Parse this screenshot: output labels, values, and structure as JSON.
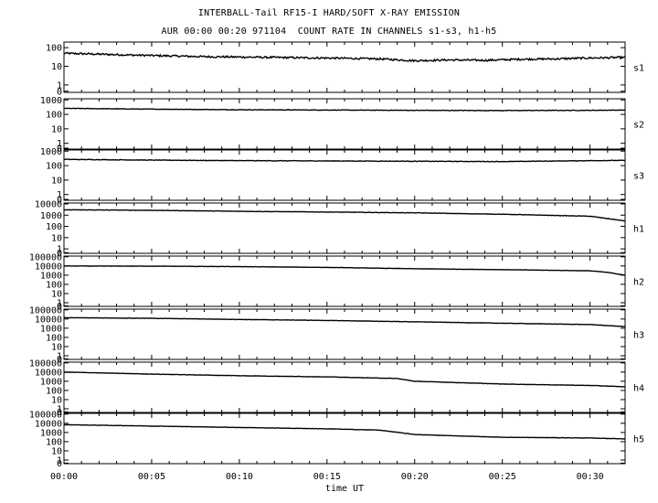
{
  "chart_data": {
    "type": "line",
    "title": "INTERBALL-Tail RF15-I HARD/SOFT X-RAY EMISSION",
    "subtitle": "AUR 00:00 00:20 971104  COUNT RATE IN CHANNELS s1-s3, h1-h5",
    "xlabel": "time UT",
    "x_ticks": [
      "00:00",
      "00:05",
      "00:10",
      "00:15",
      "00:20",
      "00:25",
      "00:30"
    ],
    "x_range": [
      "00:00",
      "00:32"
    ],
    "y_scale": "log",
    "grid": false,
    "panels": [
      {
        "name": "s1",
        "y_ticks": [
          "0",
          "1",
          "10",
          "100"
        ],
        "ylim": [
          0.4,
          200
        ],
        "series": {
          "x": [
            "00:00",
            "00:04",
            "00:08",
            "00:12",
            "00:16",
            "00:18",
            "00:20",
            "00:22",
            "00:24",
            "00:26",
            "00:28",
            "00:30",
            "00:32"
          ],
          "values": [
            50,
            40,
            33,
            30,
            27,
            25,
            20,
            22,
            21,
            24,
            25,
            28,
            30
          ]
        }
      },
      {
        "name": "s2",
        "y_ticks": [
          "0",
          "1",
          "10",
          "100",
          "1000"
        ],
        "ylim": [
          0.4,
          1200
        ],
        "series": {
          "x": [
            "00:00",
            "00:05",
            "00:10",
            "00:15",
            "00:20",
            "00:25",
            "00:30",
            "00:32"
          ],
          "values": [
            260,
            230,
            210,
            200,
            190,
            185,
            190,
            200
          ]
        }
      },
      {
        "name": "s3",
        "y_ticks": [
          "0",
          "1",
          "10",
          "100",
          "1000"
        ],
        "ylim": [
          0.4,
          1200
        ],
        "series": {
          "x": [
            "00:00",
            "00:05",
            "00:10",
            "00:15",
            "00:20",
            "00:25",
            "00:30",
            "00:32"
          ],
          "values": [
            270,
            240,
            220,
            210,
            200,
            190,
            220,
            230
          ]
        }
      },
      {
        "name": "h1",
        "y_ticks": [
          "0",
          "1",
          "10",
          "100",
          "1000",
          "10000"
        ],
        "ylim": [
          0.4,
          12000
        ],
        "series": {
          "x": [
            "00:00",
            "00:05",
            "00:10",
            "00:15",
            "00:20",
            "00:25",
            "00:30",
            "00:31",
            "00:32"
          ],
          "values": [
            3000,
            2700,
            2200,
            1900,
            1600,
            1200,
            800,
            500,
            300
          ]
        }
      },
      {
        "name": "h2",
        "y_ticks": [
          "0",
          "1",
          "10",
          "100",
          "1000",
          "10000",
          "100000"
        ],
        "ylim": [
          0.4,
          120000
        ],
        "series": {
          "x": [
            "00:00",
            "00:05",
            "00:10",
            "00:15",
            "00:20",
            "00:25",
            "00:30",
            "00:31",
            "00:32"
          ],
          "values": [
            10000,
            9500,
            8500,
            7000,
            5000,
            4000,
            3000,
            2000,
            1000
          ]
        }
      },
      {
        "name": "h3",
        "y_ticks": [
          "0",
          "1",
          "10",
          "100",
          "1000",
          "10000",
          "100000"
        ],
        "ylim": [
          0.4,
          120000
        ],
        "series": {
          "x": [
            "00:00",
            "00:05",
            "00:10",
            "00:15",
            "00:20",
            "00:25",
            "00:30",
            "00:32"
          ],
          "values": [
            14000,
            12000,
            9000,
            7000,
            5000,
            3500,
            2500,
            1500
          ]
        }
      },
      {
        "name": "h4",
        "y_ticks": [
          "0",
          "1",
          "10",
          "100",
          "1000",
          "10000",
          "100000"
        ],
        "ylim": [
          0.4,
          120000
        ],
        "series": {
          "x": [
            "00:00",
            "00:05",
            "00:10",
            "00:15",
            "00:19",
            "00:20",
            "00:25",
            "00:30",
            "00:32"
          ],
          "values": [
            10000,
            6000,
            4000,
            3000,
            2000,
            1000,
            500,
            350,
            250
          ]
        }
      },
      {
        "name": "h5",
        "y_ticks": [
          "0",
          "1",
          "10",
          "100",
          "1000",
          "10000",
          "100000"
        ],
        "ylim": [
          0.4,
          120000
        ],
        "series": {
          "x": [
            "00:00",
            "00:05",
            "00:10",
            "00:15",
            "00:18",
            "00:20",
            "00:22",
            "00:25",
            "00:30",
            "00:32"
          ],
          "values": [
            7000,
            5000,
            3500,
            2500,
            1800,
            600,
            450,
            300,
            250,
            200
          ]
        }
      }
    ]
  }
}
